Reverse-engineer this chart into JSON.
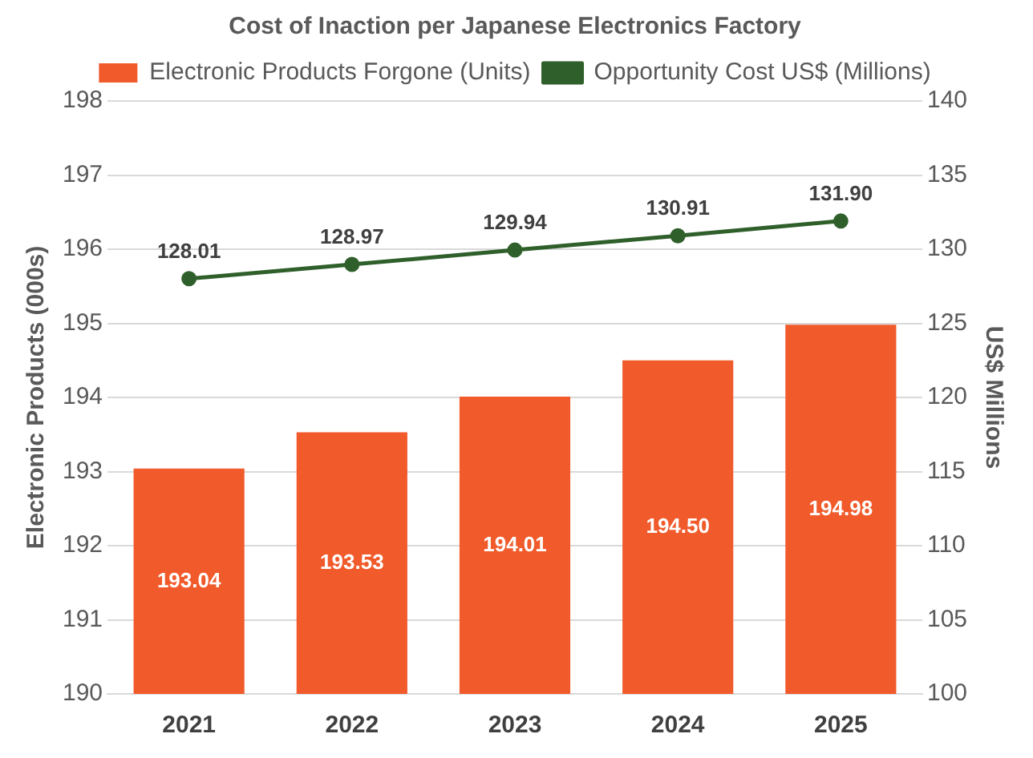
{
  "chart_data": {
    "type": "bar",
    "title": "Cost of Inaction per Japanese Electronics Factory",
    "categories": [
      "2021",
      "2022",
      "2023",
      "2024",
      "2025"
    ],
    "series": [
      {
        "name": "Electronic Products Forgone (Units)",
        "color": "#f15a2b",
        "values": [
          193.04,
          193.53,
          194.01,
          194.5,
          194.98
        ],
        "value_labels": [
          "193.04",
          "193.53",
          "194.01",
          "194.50",
          "194.98"
        ]
      },
      {
        "name": "Opportunity Cost US$ (Millions)",
        "type": "line",
        "axis": "y2",
        "color": "#2f5f2a",
        "values": [
          128.01,
          128.97,
          129.94,
          130.91,
          131.9
        ],
        "value_labels": [
          "128.01",
          "128.97",
          "129.94",
          "130.91",
          "131.90"
        ]
      }
    ],
    "ylabel": "Electronic Products (000s)",
    "y2label": "US$ Millions",
    "ylim": [
      190,
      198
    ],
    "yticks": [
      190,
      191,
      192,
      193,
      194,
      195,
      196,
      197,
      198
    ],
    "y2lim": [
      100,
      140
    ],
    "y2ticks": [
      100,
      105,
      110,
      115,
      120,
      125,
      130,
      135,
      140
    ],
    "grid": "y",
    "legend": "top",
    "marker": "circle"
  }
}
